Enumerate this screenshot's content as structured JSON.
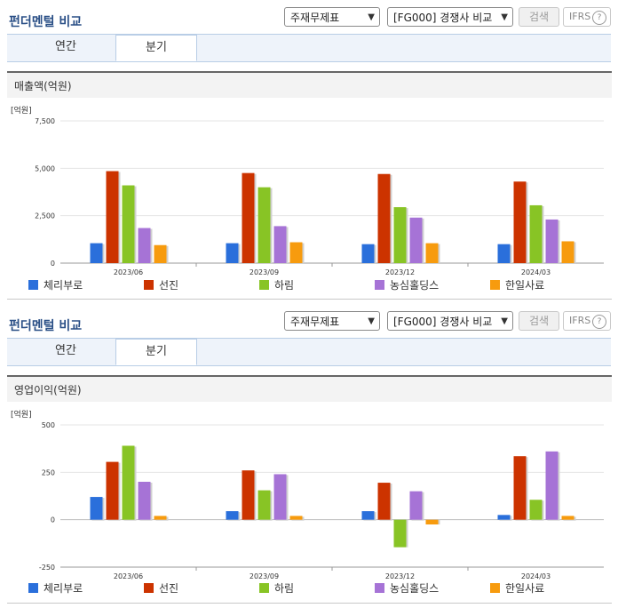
{
  "header": {
    "title": "펀더멘털 비교",
    "statement_select": "주재무제표",
    "peer_select": "[FG000] 경쟁사 비교",
    "search_button": "검색",
    "ifrs_label": "IFRS"
  },
  "tabs": [
    "연간",
    "분기"
  ],
  "active_tab": "분기",
  "colors": {
    "체리부로": "#2a6fdb",
    "선진": "#cc3300",
    "하림": "#88c425",
    "농심홀딩스": "#a673d6",
    "한일사료": "#f79b0e"
  },
  "chart_data": [
    {
      "type": "bar",
      "metric_label": "매출액(억원)",
      "unit": "[억원]",
      "categories": [
        "2023/06",
        "2023/09",
        "2023/12",
        "2024/03"
      ],
      "ylim": [
        0,
        7500
      ],
      "yticks": [
        "7,500",
        "5,000",
        "2,500",
        "0"
      ],
      "ytick_values": [
        7500,
        5000,
        2500,
        0
      ],
      "series": [
        {
          "name": "체리부로",
          "values": [
            1050,
            1050,
            1000,
            1000
          ]
        },
        {
          "name": "선진",
          "values": [
            4850,
            4750,
            4700,
            4300
          ]
        },
        {
          "name": "하림",
          "values": [
            4100,
            4000,
            2950,
            3050
          ]
        },
        {
          "name": "농심홀딩스",
          "values": [
            1850,
            1950,
            2400,
            2300
          ]
        },
        {
          "name": "한일사료",
          "values": [
            950,
            1100,
            1050,
            1150
          ]
        }
      ]
    },
    {
      "type": "bar",
      "metric_label": "영업이익(억원)",
      "unit": "[억원]",
      "categories": [
        "2023/06",
        "2023/09",
        "2023/12",
        "2024/03"
      ],
      "ylim": [
        -250,
        500
      ],
      "yticks": [
        "500",
        "250",
        "0",
        "-250"
      ],
      "ytick_values": [
        500,
        250,
        0,
        -250
      ],
      "series": [
        {
          "name": "체리부로",
          "values": [
            120,
            45,
            45,
            25
          ]
        },
        {
          "name": "선진",
          "values": [
            305,
            260,
            195,
            335
          ]
        },
        {
          "name": "하림",
          "values": [
            390,
            155,
            -145,
            105
          ]
        },
        {
          "name": "농심홀딩스",
          "values": [
            200,
            240,
            150,
            360
          ]
        },
        {
          "name": "한일사료",
          "values": [
            20,
            20,
            -25,
            20
          ]
        }
      ]
    }
  ]
}
